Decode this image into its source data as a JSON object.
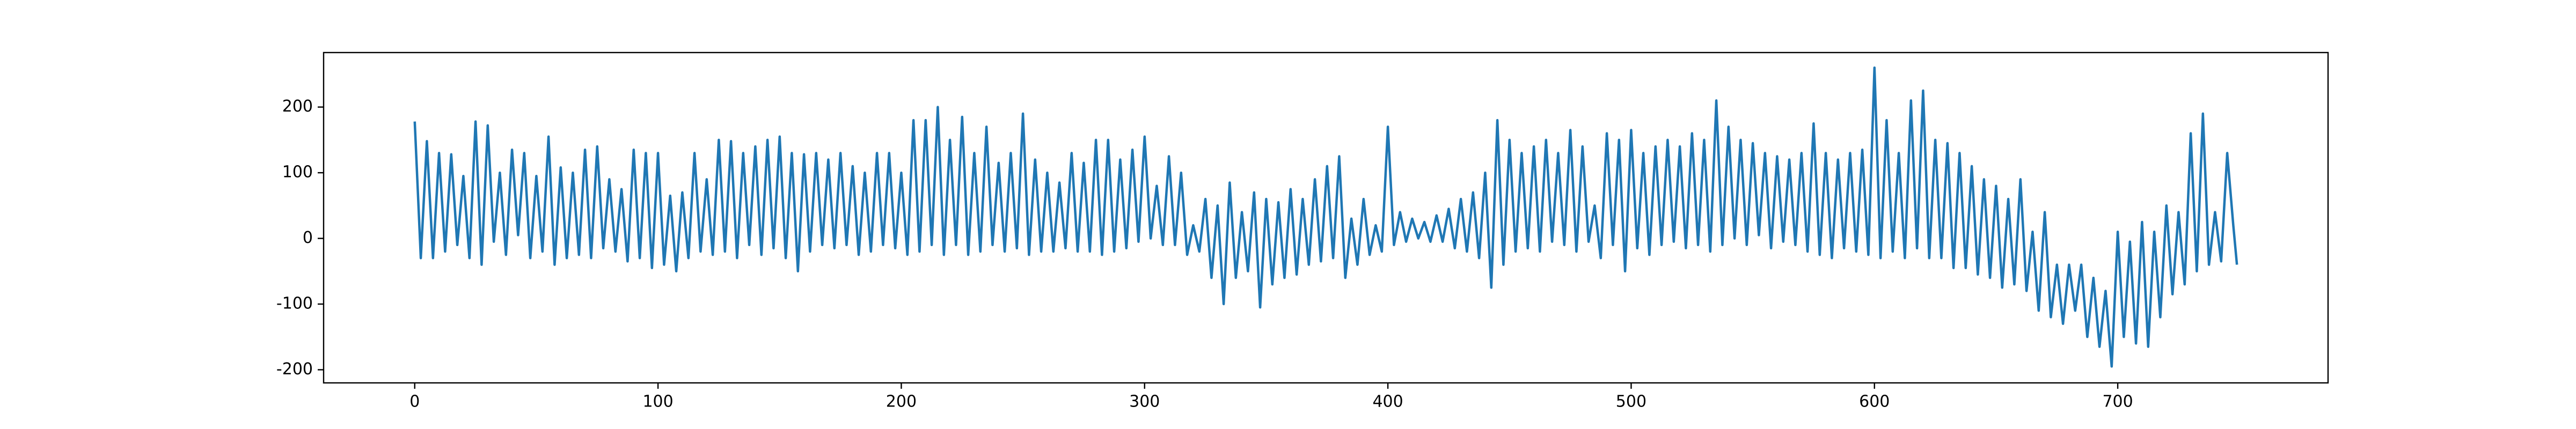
{
  "chart_data": {
    "type": "line",
    "x": [
      0,
      2.5,
      5,
      7.5,
      10,
      12.5,
      15,
      17.5,
      20,
      22.5,
      25,
      27.5,
      30,
      32.5,
      35,
      37.5,
      40,
      42.5,
      45,
      47.5,
      50,
      52.5,
      55,
      57.5,
      60,
      62.5,
      65,
      67.5,
      70,
      72.5,
      75,
      77.5,
      80,
      82.5,
      85,
      87.5,
      90,
      92.5,
      95,
      97.5,
      100,
      102.5,
      105,
      107.5,
      110,
      112.5,
      115,
      117.5,
      120,
      122.5,
      125,
      127.5,
      130,
      132.5,
      135,
      137.5,
      140,
      142.5,
      145,
      147.5,
      150,
      152.5,
      155,
      157.5,
      160,
      162.5,
      165,
      167.5,
      170,
      172.5,
      175,
      177.5,
      180,
      182.5,
      185,
      187.5,
      190,
      192.5,
      195,
      197.5,
      200,
      202.5,
      205,
      207.5,
      210,
      212.5,
      215,
      217.5,
      220,
      222.5,
      225,
      227.5,
      230,
      232.5,
      235,
      237.5,
      240,
      242.5,
      245,
      247.5,
      250,
      252.5,
      255,
      257.5,
      260,
      262.5,
      265,
      267.5,
      270,
      272.5,
      275,
      277.5,
      280,
      282.5,
      285,
      287.5,
      290,
      292.5,
      295,
      297.5,
      300,
      302.5,
      305,
      307.5,
      310,
      312.5,
      315,
      317.5,
      320,
      322.5,
      325,
      327.5,
      330,
      332.5,
      335,
      337.5,
      340,
      342.5,
      345,
      347.5,
      350,
      352.5,
      355,
      357.5,
      360,
      362.5,
      365,
      367.5,
      370,
      372.5,
      375,
      377.5,
      380,
      382.5,
      385,
      387.5,
      390,
      392.5,
      395,
      397.5,
      400,
      402.5,
      405,
      407.5,
      410,
      412.5,
      415,
      417.5,
      420,
      422.5,
      425,
      427.5,
      430,
      432.5,
      435,
      437.5,
      440,
      442.5,
      445,
      447.5,
      450,
      452.5,
      455,
      457.5,
      460,
      462.5,
      465,
      467.5,
      470,
      472.5,
      475,
      477.5,
      480,
      482.5,
      485,
      487.5,
      490,
      492.5,
      495,
      497.5,
      500,
      502.5,
      505,
      507.5,
      510,
      512.5,
      515,
      517.5,
      520,
      522.5,
      525,
      527.5,
      530,
      532.5,
      535,
      537.5,
      540,
      542.5,
      545,
      547.5,
      550,
      552.5,
      555,
      557.5,
      560,
      562.5,
      565,
      567.5,
      570,
      572.5,
      575,
      577.5,
      580,
      582.5,
      585,
      587.5,
      590,
      592.5,
      595,
      597.5,
      600,
      602.5,
      605,
      607.5,
      610,
      612.5,
      615,
      617.5,
      620,
      622.5,
      625,
      627.5,
      630,
      632.5,
      635,
      637.5,
      640,
      642.5,
      645,
      647.5,
      650,
      652.5,
      655,
      657.5,
      660,
      662.5,
      665,
      667.5,
      670,
      672.5,
      675,
      677.5,
      680,
      682.5,
      685,
      687.5,
      690,
      692.5,
      695,
      697.5,
      700,
      702.5,
      705,
      707.5,
      710,
      712.5,
      715,
      717.5,
      720,
      722.5,
      725,
      727.5,
      730,
      732.5,
      735,
      737.5,
      740,
      742.5,
      745,
      747.5,
      749
    ],
    "series": [
      {
        "color": "#1f77b4",
        "values": [
          178,
          -30,
          148,
          -30,
          130,
          -20,
          128,
          -10,
          95,
          -30,
          178,
          -40,
          172,
          -5,
          100,
          -25,
          135,
          5,
          130,
          -30,
          95,
          -20,
          155,
          -40,
          108,
          -30,
          100,
          -25,
          135,
          -30,
          140,
          -15,
          90,
          -20,
          75,
          -35,
          135,
          -30,
          130,
          -45,
          130,
          -40,
          65,
          -50,
          70,
          -30,
          130,
          -20,
          90,
          -25,
          150,
          -20,
          148,
          -30,
          130,
          -10,
          140,
          -25,
          150,
          -15,
          155,
          -30,
          130,
          -50,
          128,
          -20,
          130,
          -10,
          120,
          -15,
          130,
          -10,
          110,
          -25,
          100,
          -20,
          130,
          -10,
          130,
          -15,
          100,
          -25,
          180,
          -20,
          180,
          -10,
          200,
          -25,
          150,
          -10,
          185,
          -25,
          130,
          -20,
          170,
          -10,
          115,
          -20,
          130,
          -15,
          190,
          -25,
          120,
          -20,
          100,
          -20,
          85,
          -15,
          130,
          -20,
          115,
          -20,
          150,
          -25,
          150,
          -20,
          120,
          -15,
          135,
          -5,
          155,
          0,
          80,
          -10,
          125,
          -10,
          100,
          -25,
          20,
          -20,
          60,
          -60,
          50,
          -100,
          85,
          -60,
          40,
          -50,
          70,
          -105,
          60,
          -70,
          55,
          -60,
          75,
          -55,
          60,
          -40,
          90,
          -35,
          110,
          -30,
          125,
          -60,
          30,
          -40,
          60,
          -25,
          20,
          -20,
          170,
          -10,
          40,
          -5,
          30,
          0,
          25,
          -5,
          35,
          -5,
          45,
          -15,
          60,
          -20,
          70,
          -30,
          100,
          -75,
          180,
          -40,
          150,
          -20,
          130,
          -15,
          140,
          -20,
          150,
          -5,
          130,
          -10,
          165,
          -20,
          140,
          -5,
          50,
          -30,
          160,
          -10,
          150,
          -50,
          165,
          -15,
          130,
          -25,
          140,
          -10,
          150,
          -5,
          140,
          -15,
          160,
          -10,
          150,
          -20,
          210,
          -10,
          170,
          0,
          150,
          -10,
          145,
          5,
          130,
          -15,
          125,
          -5,
          120,
          -10,
          130,
          -20,
          175,
          -25,
          130,
          -30,
          120,
          -15,
          130,
          -20,
          135,
          -25,
          260,
          -30,
          180,
          -20,
          130,
          -30,
          210,
          -15,
          225,
          -30,
          150,
          -30,
          145,
          -45,
          130,
          -45,
          110,
          -55,
          90,
          -60,
          80,
          -75,
          60,
          -70,
          90,
          -80,
          10,
          -110,
          40,
          -120,
          -40,
          -130,
          -40,
          -110,
          -40,
          -150,
          -60,
          -165,
          -80,
          -195,
          10,
          -150,
          -5,
          -160,
          25,
          -165,
          10,
          -120,
          50,
          -85,
          40,
          -70,
          160,
          -50,
          190,
          -40,
          40,
          -35,
          130,
          20,
          -40
        ]
      }
    ],
    "xlim": [
      -37.45,
      786.45
    ],
    "xticks": [
      0,
      100,
      200,
      300,
      400,
      500,
      600,
      700
    ],
    "ylim": [
      -220,
      283
    ],
    "yticks": [
      -200,
      -100,
      0,
      100,
      200
    ]
  }
}
